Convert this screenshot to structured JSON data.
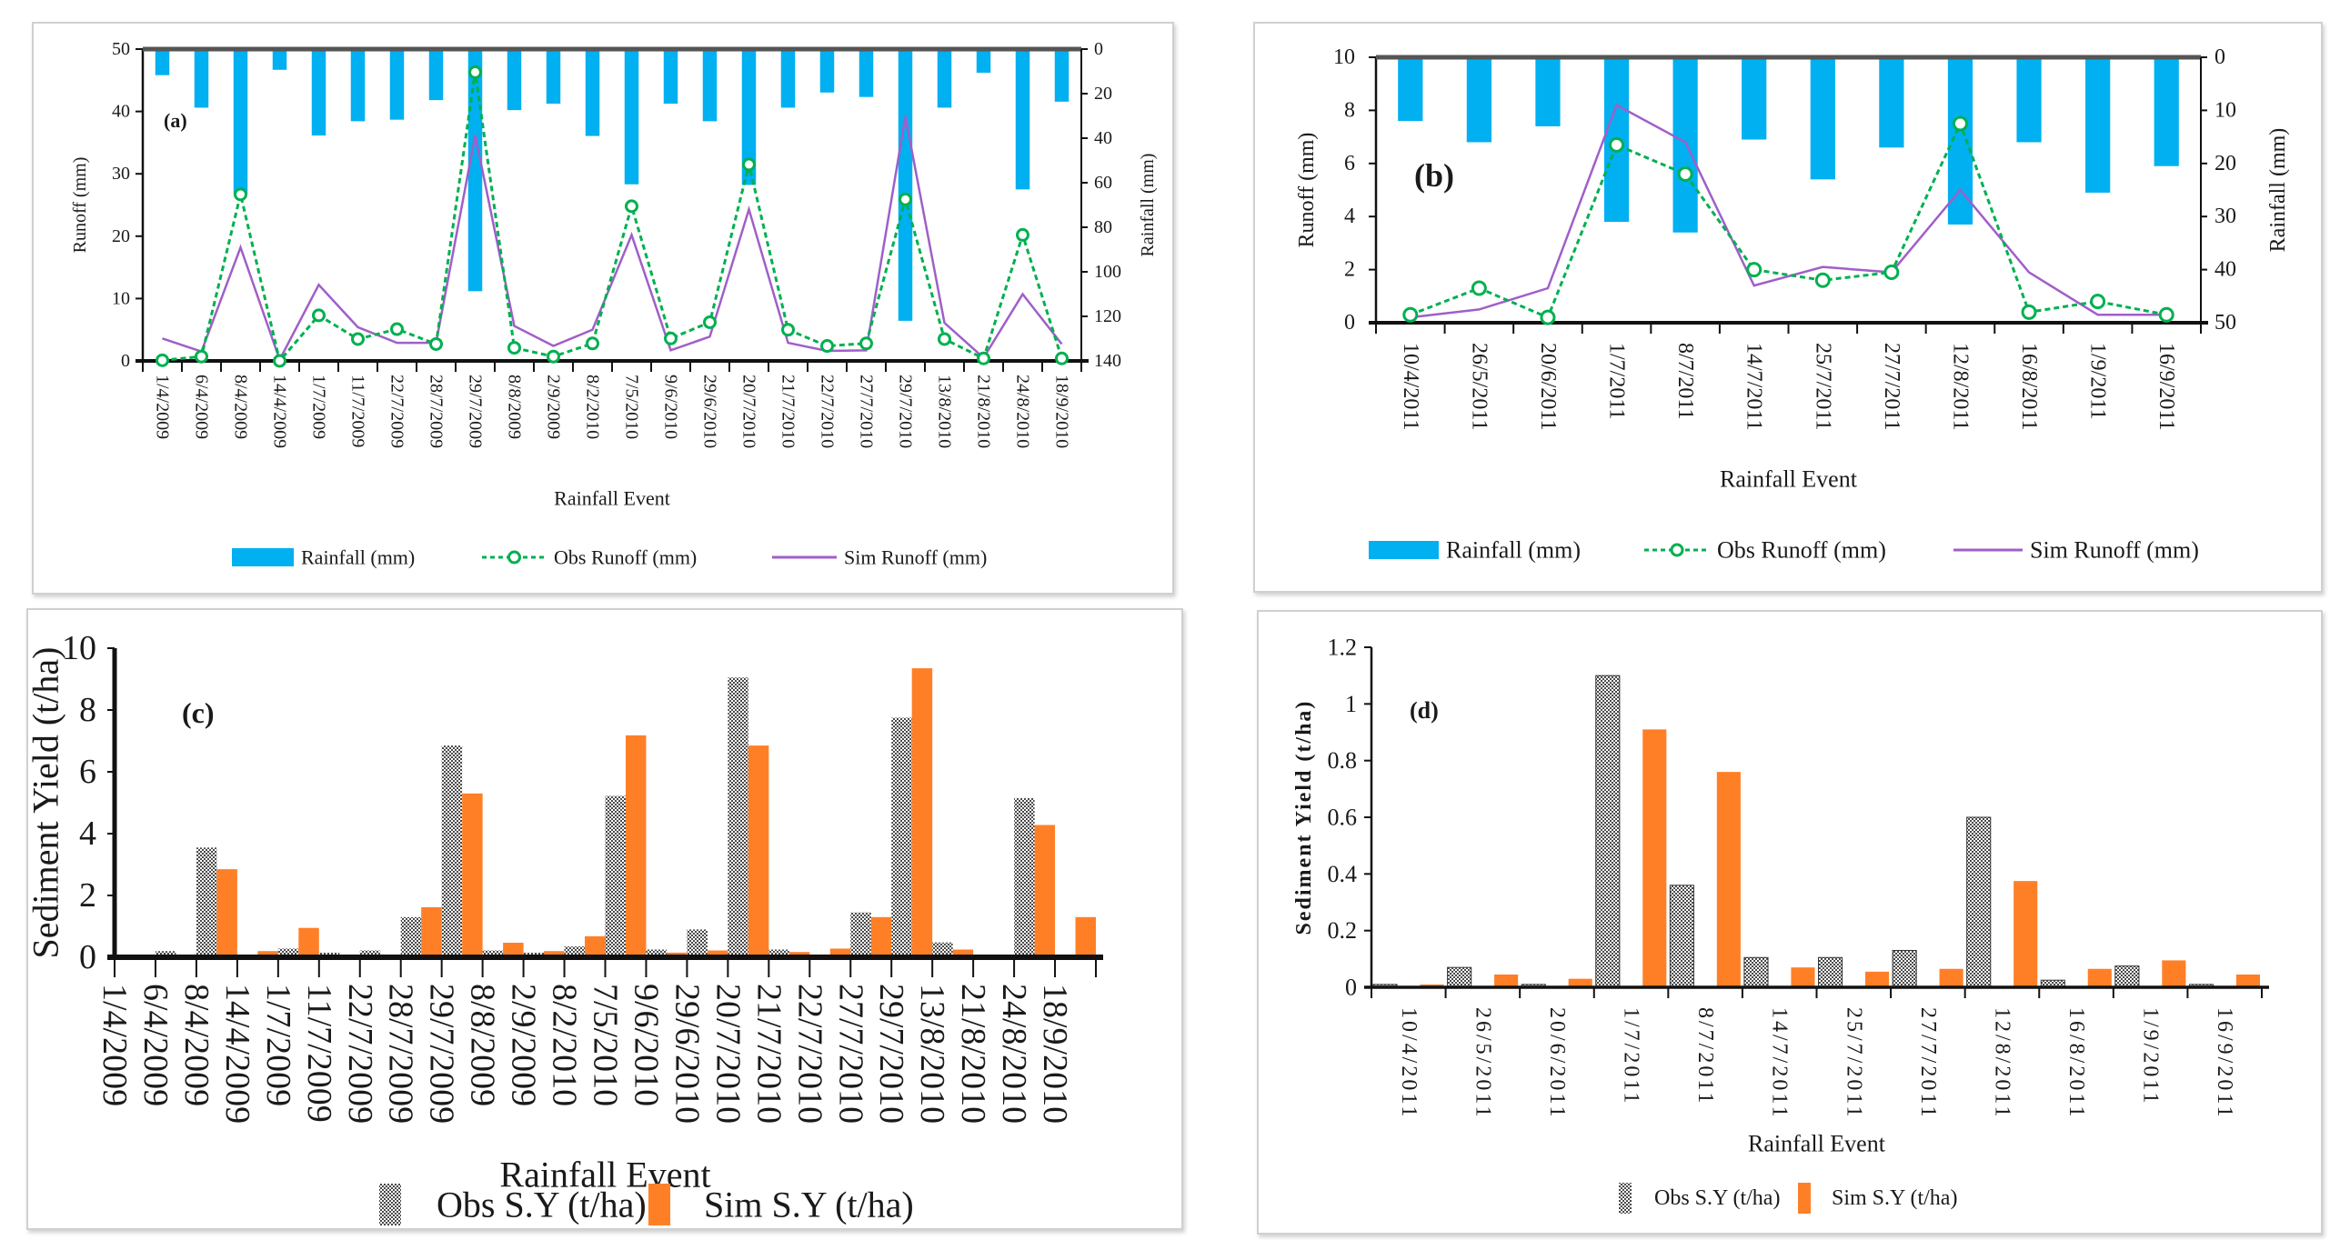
{
  "colors": {
    "rainfall": "#00b0f0",
    "obs_runoff": "#00b050",
    "sim_runoff": "#a05fc8",
    "sim_sy": "#ff7f27",
    "obs_sy_pattern": "#555555"
  },
  "chart_data": [
    {
      "type": "bar+line",
      "panel_label": "(a)",
      "xlabel": "Rainfall Event",
      "ylabel": "Runoff (mm)",
      "y2label": "Rainfall (mm)",
      "ylim": [
        0,
        50
      ],
      "y_ticks": [
        "0",
        "10",
        "20",
        "30",
        "40",
        "50"
      ],
      "y2lim": [
        0,
        140
      ],
      "y2_inverted": true,
      "y2_ticks": [
        "0",
        "20",
        "40",
        "60",
        "80",
        "100",
        "120",
        "140"
      ],
      "legend_position": "bottom",
      "categories": [
        "1/4/2009",
        "6/4/2009",
        "8/4/2009",
        "14/4/2009",
        "1/7/2009",
        "11/7/2009",
        "22/7/2009",
        "28/7/2009",
        "29/7/2009",
        "8/8/2009",
        "2/9/2009",
        "8/2/2010",
        "7/5/2010",
        "9/6/2010",
        "29/6/2010",
        "20/7/2010",
        "21/7/2010",
        "22/7/2010",
        "27/7/2010",
        "29/7/2010",
        "13/8/2010",
        "21/8/2010",
        "24/8/2010",
        "18/9/2010"
      ],
      "series": [
        {
          "name": "Rainfall (mm)",
          "kind": "bar",
          "axis": "right",
          "values": [
            11.7,
            26.3,
            65,
            9.3,
            38.8,
            32.4,
            31.7,
            22.9,
            108.7,
            27.4,
            24.5,
            39,
            60.7,
            24.5,
            32.4,
            61,
            26.3,
            19.5,
            21.5,
            122,
            26.3,
            10.6,
            63,
            23.6
          ]
        },
        {
          "name": "Obs Runoff (mm)",
          "kind": "line-dashed-markers",
          "axis": "left",
          "values": [
            0.1,
            0.7,
            26.7,
            0,
            7.3,
            3.5,
            5.1,
            2.7,
            46.3,
            2.1,
            0.7,
            2.8,
            24.8,
            3.6,
            6.2,
            31.5,
            5,
            2.4,
            2.8,
            25.9,
            3.5,
            0.4,
            20.2,
            0.4
          ]
        },
        {
          "name": "Sim Runoff (mm)",
          "kind": "line",
          "axis": "left",
          "values": [
            3.6,
            1.5,
            18.2,
            0.2,
            12.2,
            5.4,
            2.9,
            2.9,
            36.2,
            5.6,
            2.4,
            5,
            20.2,
            1.7,
            3.9,
            24.3,
            2.9,
            1.6,
            1.7,
            39.2,
            6.1,
            0.5,
            10.7,
            2.7
          ]
        }
      ]
    },
    {
      "type": "bar+line",
      "panel_label": "(b)",
      "xlabel": "Rainfall Event",
      "ylabel": "Runoff (mm)",
      "y2label": "Rainfall (mm)",
      "ylim": [
        0,
        10
      ],
      "y_ticks": [
        "0",
        "2",
        "4",
        "6",
        "8",
        "10"
      ],
      "y2lim": [
        0,
        50
      ],
      "y2_inverted": true,
      "y2_ticks": [
        "0",
        "10",
        "20",
        "30",
        "40",
        "50"
      ],
      "legend_position": "bottom",
      "categories": [
        "10/4/2011",
        "26/5/2011",
        "20/6/2011",
        "1/7/2011",
        "8/7/2011",
        "14/7/2011",
        "25/7/2011",
        "27/7/2011",
        "12/8/2011",
        "16/8/2011",
        "1/9/2011",
        "16/9/2011"
      ],
      "series": [
        {
          "name": "Rainfall (mm)",
          "kind": "bar",
          "axis": "right",
          "values": [
            12,
            16,
            13,
            31,
            33,
            15.5,
            23,
            17,
            31.5,
            16,
            25.5,
            20.5
          ]
        },
        {
          "name": "Obs Runoff (mm)",
          "kind": "line-dashed-markers",
          "axis": "left",
          "values": [
            0.3,
            1.3,
            0.2,
            6.7,
            5.6,
            2,
            1.6,
            1.9,
            7.5,
            0.4,
            0.8,
            0.3
          ]
        },
        {
          "name": "Sim Runoff (mm)",
          "kind": "line",
          "axis": "left",
          "values": [
            0.2,
            0.5,
            1.3,
            8.2,
            6.8,
            1.4,
            2.1,
            1.9,
            5,
            1.9,
            0.3,
            0.3
          ]
        }
      ]
    },
    {
      "type": "bar",
      "panel_label": "(c)",
      "xlabel": "Rainfall Event",
      "ylabel": "Sediment Yield (t/ha)",
      "ylim": [
        0,
        10
      ],
      "y_ticks": [
        "0",
        "2",
        "4",
        "6",
        "8",
        "10"
      ],
      "legend_position": "bottom",
      "categories": [
        "1/4/2009",
        "6/4/2009",
        "8/4/2009",
        "14/4/2009",
        "1/7/2009",
        "11/7/2009",
        "22/7/2009",
        "28/7/2009",
        "29/7/2009",
        "8/8/2009",
        "2/9/2009",
        "8/2/2010",
        "7/5/2010",
        "9/6/2010",
        "29/6/2010",
        "20/7/2010",
        "21/7/2010",
        "22/7/2010",
        "27/7/2010",
        "29/7/2010",
        "13/8/2010",
        "21/8/2010",
        "24/8/2010",
        "18/9/2010"
      ],
      "series": [
        {
          "name": "Obs S.Y (t/ha)",
          "values": [
            0,
            0.2,
            3.55,
            0,
            0.28,
            0.15,
            0.22,
            1.3,
            6.85,
            0.22,
            0.15,
            0.35,
            5.22,
            0.25,
            0.9,
            9.05,
            0.25,
            0,
            1.45,
            7.75,
            0.48,
            0,
            5.15,
            0.03
          ]
        },
        {
          "name": "Sim S.Y (t/ha)",
          "values": [
            0,
            0.03,
            2.85,
            0.2,
            0.95,
            0.08,
            0.08,
            1.62,
            5.3,
            0.47,
            0.2,
            0.68,
            7.18,
            0.15,
            0.22,
            6.85,
            0.17,
            0.28,
            1.3,
            9.35,
            0.25,
            0,
            4.28,
            1.3
          ]
        }
      ]
    },
    {
      "type": "bar",
      "panel_label": "(d)",
      "xlabel": "Rainfall Event",
      "ylabel": "Sediment  Yield (t/ha)",
      "ylim": [
        0,
        1.2
      ],
      "y_ticks": [
        "0",
        "0.2",
        "0.4",
        "0.6",
        "0.8",
        "1",
        "1.2"
      ],
      "legend_position": "bottom",
      "categories": [
        "10/4/2011",
        "26/5/2011",
        "20/6/2011",
        "1/7/2011",
        "8/7/2011",
        "14/7/2011",
        "25/7/2011",
        "27/7/2011",
        "12/8/2011",
        "16/8/2011",
        "1/9/2011",
        "16/9/2011"
      ],
      "series": [
        {
          "name": "Obs S.Y (t/ha)",
          "values": [
            0.01,
            0.07,
            0.01,
            1.1,
            0.36,
            0.105,
            0.105,
            0.13,
            0.6,
            0.025,
            0.075,
            0.01
          ]
        },
        {
          "name": "Sim S.Y (t/ha)",
          "values": [
            0.01,
            0.045,
            0.03,
            0.91,
            0.76,
            0.07,
            0.055,
            0.065,
            0.375,
            0.065,
            0.095,
            0.045
          ]
        }
      ]
    }
  ]
}
